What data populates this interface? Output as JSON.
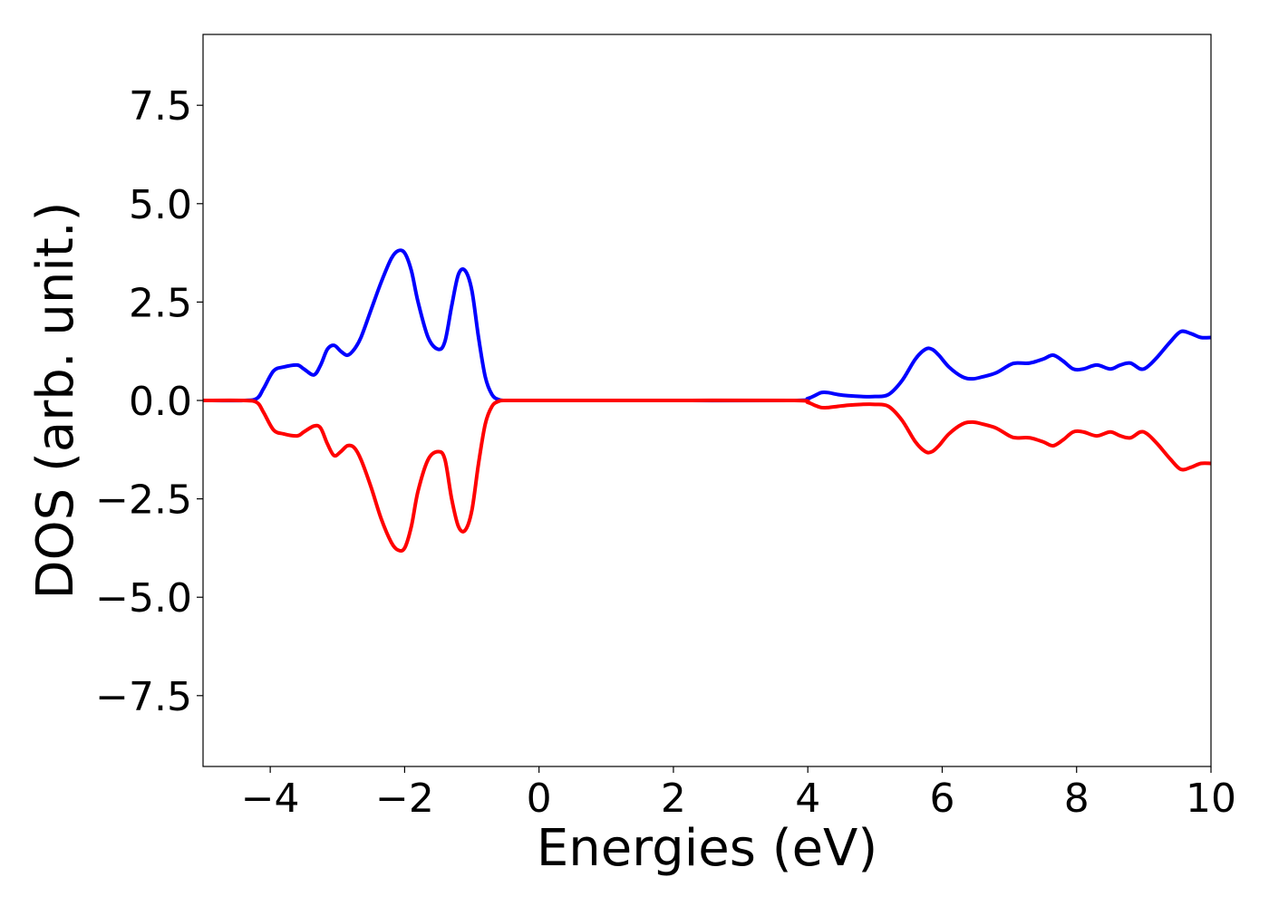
{
  "chart_data": {
    "type": "line",
    "title": "",
    "xlabel": "Energies (eV)",
    "ylabel": "DOS (arb. unit.)",
    "xlim": [
      -5,
      10
    ],
    "ylim": [
      -9.3,
      9.3
    ],
    "x_ticks": [
      -4,
      -2,
      0,
      2,
      4,
      6,
      8,
      10
    ],
    "x_tick_labels": [
      "−4",
      "−2",
      "0",
      "2",
      "4",
      "6",
      "8",
      "10"
    ],
    "y_ticks": [
      7.5,
      5.0,
      2.5,
      0.0,
      -2.5,
      -5.0,
      -7.5
    ],
    "y_tick_labels": [
      "7.5",
      "5.0",
      "2.5",
      "0.0",
      "−2.5",
      "−5.0",
      "−7.5"
    ],
    "grid": false,
    "legend": "none",
    "series": [
      {
        "color": "#0000ff",
        "x": [
          -5.0,
          -4.4,
          -4.2,
          -4.1,
          -3.95,
          -3.8,
          -3.6,
          -3.5,
          -3.35,
          -3.25,
          -3.15,
          -3.05,
          -2.95,
          -2.85,
          -2.75,
          -2.65,
          -2.5,
          -2.35,
          -2.2,
          -2.1,
          -2.0,
          -1.9,
          -1.8,
          -1.65,
          -1.5,
          -1.4,
          -1.3,
          -1.2,
          -1.1,
          -1.0,
          -0.9,
          -0.8,
          -0.7,
          -0.6,
          -0.5,
          -0.3,
          0.0,
          2.0,
          3.8,
          4.0,
          4.1,
          4.2,
          4.3,
          4.45,
          4.6,
          4.8,
          5.0,
          5.2,
          5.4,
          5.6,
          5.75,
          5.85,
          5.95,
          6.1,
          6.3,
          6.45,
          6.6,
          6.8,
          7.0,
          7.1,
          7.3,
          7.5,
          7.65,
          7.8,
          7.95,
          8.1,
          8.3,
          8.5,
          8.65,
          8.8,
          8.95,
          9.05,
          9.2,
          9.4,
          9.55,
          9.7,
          9.85,
          10.0
        ],
        "values": [
          0,
          0,
          0.05,
          0.3,
          0.75,
          0.85,
          0.9,
          0.8,
          0.65,
          0.9,
          1.3,
          1.4,
          1.25,
          1.15,
          1.3,
          1.6,
          2.3,
          3.0,
          3.6,
          3.8,
          3.75,
          3.3,
          2.5,
          1.6,
          1.3,
          1.5,
          2.4,
          3.2,
          3.3,
          2.8,
          1.6,
          0.6,
          0.15,
          0.02,
          0,
          0,
          0,
          0,
          0,
          0.05,
          0.12,
          0.2,
          0.2,
          0.15,
          0.12,
          0.1,
          0.1,
          0.15,
          0.5,
          1.05,
          1.3,
          1.3,
          1.15,
          0.85,
          0.6,
          0.55,
          0.6,
          0.7,
          0.9,
          0.95,
          0.95,
          1.05,
          1.15,
          1.0,
          0.8,
          0.8,
          0.9,
          0.8,
          0.9,
          0.95,
          0.8,
          0.85,
          1.1,
          1.5,
          1.75,
          1.7,
          1.6,
          1.6
        ]
      },
      {
        "color": "#ff0000",
        "x": [
          -5.0,
          -4.4,
          -4.2,
          -4.1,
          -3.95,
          -3.8,
          -3.6,
          -3.5,
          -3.35,
          -3.25,
          -3.15,
          -3.05,
          -2.95,
          -2.85,
          -2.75,
          -2.65,
          -2.5,
          -2.35,
          -2.2,
          -2.1,
          -2.0,
          -1.9,
          -1.8,
          -1.65,
          -1.5,
          -1.4,
          -1.3,
          -1.2,
          -1.1,
          -1.0,
          -0.9,
          -0.8,
          -0.7,
          -0.6,
          -0.5,
          -0.3,
          0.0,
          2.0,
          3.8,
          4.0,
          4.1,
          4.2,
          4.3,
          4.45,
          4.6,
          4.8,
          5.0,
          5.2,
          5.4,
          5.6,
          5.75,
          5.85,
          5.95,
          6.1,
          6.3,
          6.45,
          6.6,
          6.8,
          7.0,
          7.1,
          7.3,
          7.5,
          7.65,
          7.8,
          7.95,
          8.1,
          8.3,
          8.5,
          8.65,
          8.8,
          8.95,
          9.05,
          9.2,
          9.4,
          9.55,
          9.7,
          9.85,
          10.0
        ],
        "values": [
          0,
          0,
          -0.05,
          -0.3,
          -0.75,
          -0.85,
          -0.9,
          -0.8,
          -0.65,
          -0.7,
          -1.1,
          -1.4,
          -1.3,
          -1.15,
          -1.2,
          -1.5,
          -2.2,
          -3.0,
          -3.6,
          -3.8,
          -3.75,
          -3.2,
          -2.3,
          -1.5,
          -1.3,
          -1.5,
          -2.5,
          -3.2,
          -3.3,
          -2.8,
          -1.6,
          -0.6,
          -0.15,
          -0.02,
          0,
          0,
          0,
          0,
          0,
          -0.05,
          -0.12,
          -0.18,
          -0.18,
          -0.15,
          -0.12,
          -0.1,
          -0.1,
          -0.15,
          -0.5,
          -1.05,
          -1.3,
          -1.3,
          -1.15,
          -0.85,
          -0.6,
          -0.55,
          -0.6,
          -0.7,
          -0.9,
          -0.95,
          -0.95,
          -1.05,
          -1.15,
          -1.0,
          -0.8,
          -0.8,
          -0.9,
          -0.8,
          -0.9,
          -0.95,
          -0.8,
          -0.85,
          -1.1,
          -1.5,
          -1.75,
          -1.7,
          -1.6,
          -1.6
        ]
      }
    ]
  }
}
